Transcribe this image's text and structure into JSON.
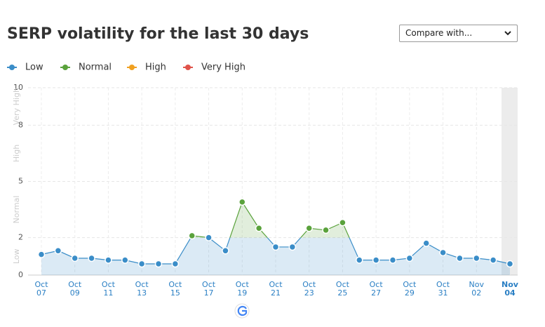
{
  "chart_data": {
    "type": "line",
    "title": "SERP volatility for the last 30 days",
    "compare_button": "Compare with...",
    "levels": [
      {
        "name": "Low",
        "color": "#3a8dc8"
      },
      {
        "name": "Normal",
        "color": "#5aa23c"
      },
      {
        "name": "High",
        "color": "#f0a020"
      },
      {
        "name": "Very High",
        "color": "#e0534a"
      }
    ],
    "categories": [
      "Oct 07",
      null,
      "Oct 09",
      null,
      "Oct 11",
      null,
      "Oct 13",
      null,
      "Oct 15",
      null,
      "Oct 17",
      null,
      "Oct 19",
      null,
      "Oct 21",
      null,
      "Oct 23",
      null,
      "Oct 25",
      null,
      "Oct 27",
      null,
      "Oct 29",
      null,
      "Oct 31",
      null,
      "Nov 02",
      null,
      "Nov 04"
    ],
    "values": [
      1.1,
      1.3,
      0.9,
      0.9,
      0.8,
      0.8,
      0.6,
      0.6,
      0.6,
      2.1,
      2.0,
      1.3,
      3.9,
      2.5,
      1.5,
      1.5,
      2.5,
      2.4,
      2.8,
      0.8,
      0.8,
      0.8,
      0.9,
      1.7,
      1.2,
      0.9,
      0.9,
      0.8,
      0.6
    ],
    "ylim": [
      0,
      10
    ],
    "yticks": [
      0,
      2,
      5,
      8,
      10
    ],
    "grid": true
  }
}
